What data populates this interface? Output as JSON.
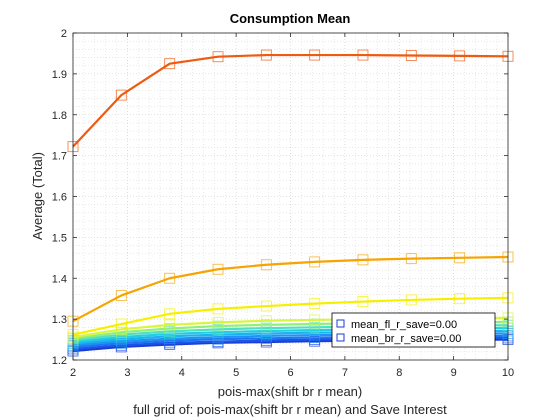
{
  "chart_data": {
    "type": "line",
    "title": "Consumption Mean",
    "xlabel": "pois-max(shift br r mean)",
    "xlabel2": "full grid of: pois-max(shift br r mean) and Save Interest",
    "ylabel": "Average (Total)",
    "xlim": [
      2,
      10
    ],
    "ylim": [
      1.2,
      2.0
    ],
    "xticks": [
      "2",
      "3",
      "4",
      "5",
      "6",
      "7",
      "8",
      "9",
      "10"
    ],
    "yticks": [
      "1.2",
      "1.3",
      "1.4",
      "1.5",
      "1.6",
      "1.7",
      "1.8",
      "1.9",
      "2"
    ],
    "grid": "minor dotted",
    "marker": "square",
    "x": [
      2,
      2.889,
      3.778,
      4.667,
      5.556,
      6.444,
      7.333,
      8.222,
      9.111,
      10
    ],
    "series": [
      {
        "color": "#1a3cd6",
        "values": [
          1.222,
          1.232,
          1.238,
          1.242,
          1.244,
          1.246,
          1.247,
          1.248,
          1.249,
          1.25
        ]
      },
      {
        "color": "#1c55e6",
        "values": [
          1.227,
          1.236,
          1.242,
          1.245,
          1.248,
          1.25,
          1.251,
          1.252,
          1.253,
          1.254
        ]
      },
      {
        "color": "#1f74f2",
        "values": [
          1.232,
          1.241,
          1.247,
          1.251,
          1.253,
          1.255,
          1.256,
          1.257,
          1.258,
          1.259
        ]
      },
      {
        "color": "#1e93f5",
        "values": [
          1.236,
          1.246,
          1.252,
          1.256,
          1.259,
          1.261,
          1.262,
          1.263,
          1.264,
          1.265
        ]
      },
      {
        "color": "#1ab2f0",
        "values": [
          1.24,
          1.251,
          1.258,
          1.262,
          1.265,
          1.267,
          1.268,
          1.269,
          1.27,
          1.271
        ]
      },
      {
        "color": "#22cde0",
        "values": [
          1.244,
          1.256,
          1.264,
          1.268,
          1.271,
          1.273,
          1.275,
          1.276,
          1.277,
          1.278
        ]
      },
      {
        "color": "#4fe0c0",
        "values": [
          1.248,
          1.262,
          1.27,
          1.275,
          1.278,
          1.28,
          1.282,
          1.283,
          1.284,
          1.285
        ]
      },
      {
        "color": "#8ef07a",
        "values": [
          1.252,
          1.268,
          1.277,
          1.283,
          1.286,
          1.288,
          1.29,
          1.291,
          1.292,
          1.293
        ]
      },
      {
        "color": "#d8f540",
        "values": [
          1.256,
          1.275,
          1.286,
          1.292,
          1.296,
          1.298,
          1.3,
          1.301,
          1.302,
          1.303
        ]
      },
      {
        "color": "#f5f000",
        "values": [
          1.262,
          1.288,
          1.313,
          1.325,
          1.332,
          1.338,
          1.343,
          1.347,
          1.35,
          1.352
        ]
      },
      {
        "color": "#f5a400",
        "values": [
          1.295,
          1.358,
          1.4,
          1.422,
          1.433,
          1.44,
          1.445,
          1.448,
          1.45,
          1.452
        ]
      },
      {
        "color": "#ee5a10",
        "values": [
          1.722,
          1.848,
          1.925,
          1.942,
          1.946,
          1.946,
          1.946,
          1.945,
          1.944,
          1.943
        ]
      }
    ],
    "legend": {
      "placement": "bottom-right",
      "entries": [
        {
          "label": "mean_fl_r_save=0.00",
          "color": "#1a3cd6"
        },
        {
          "label": "mean_br_r_save=0.00",
          "color": "#1a3cd6"
        }
      ]
    }
  }
}
